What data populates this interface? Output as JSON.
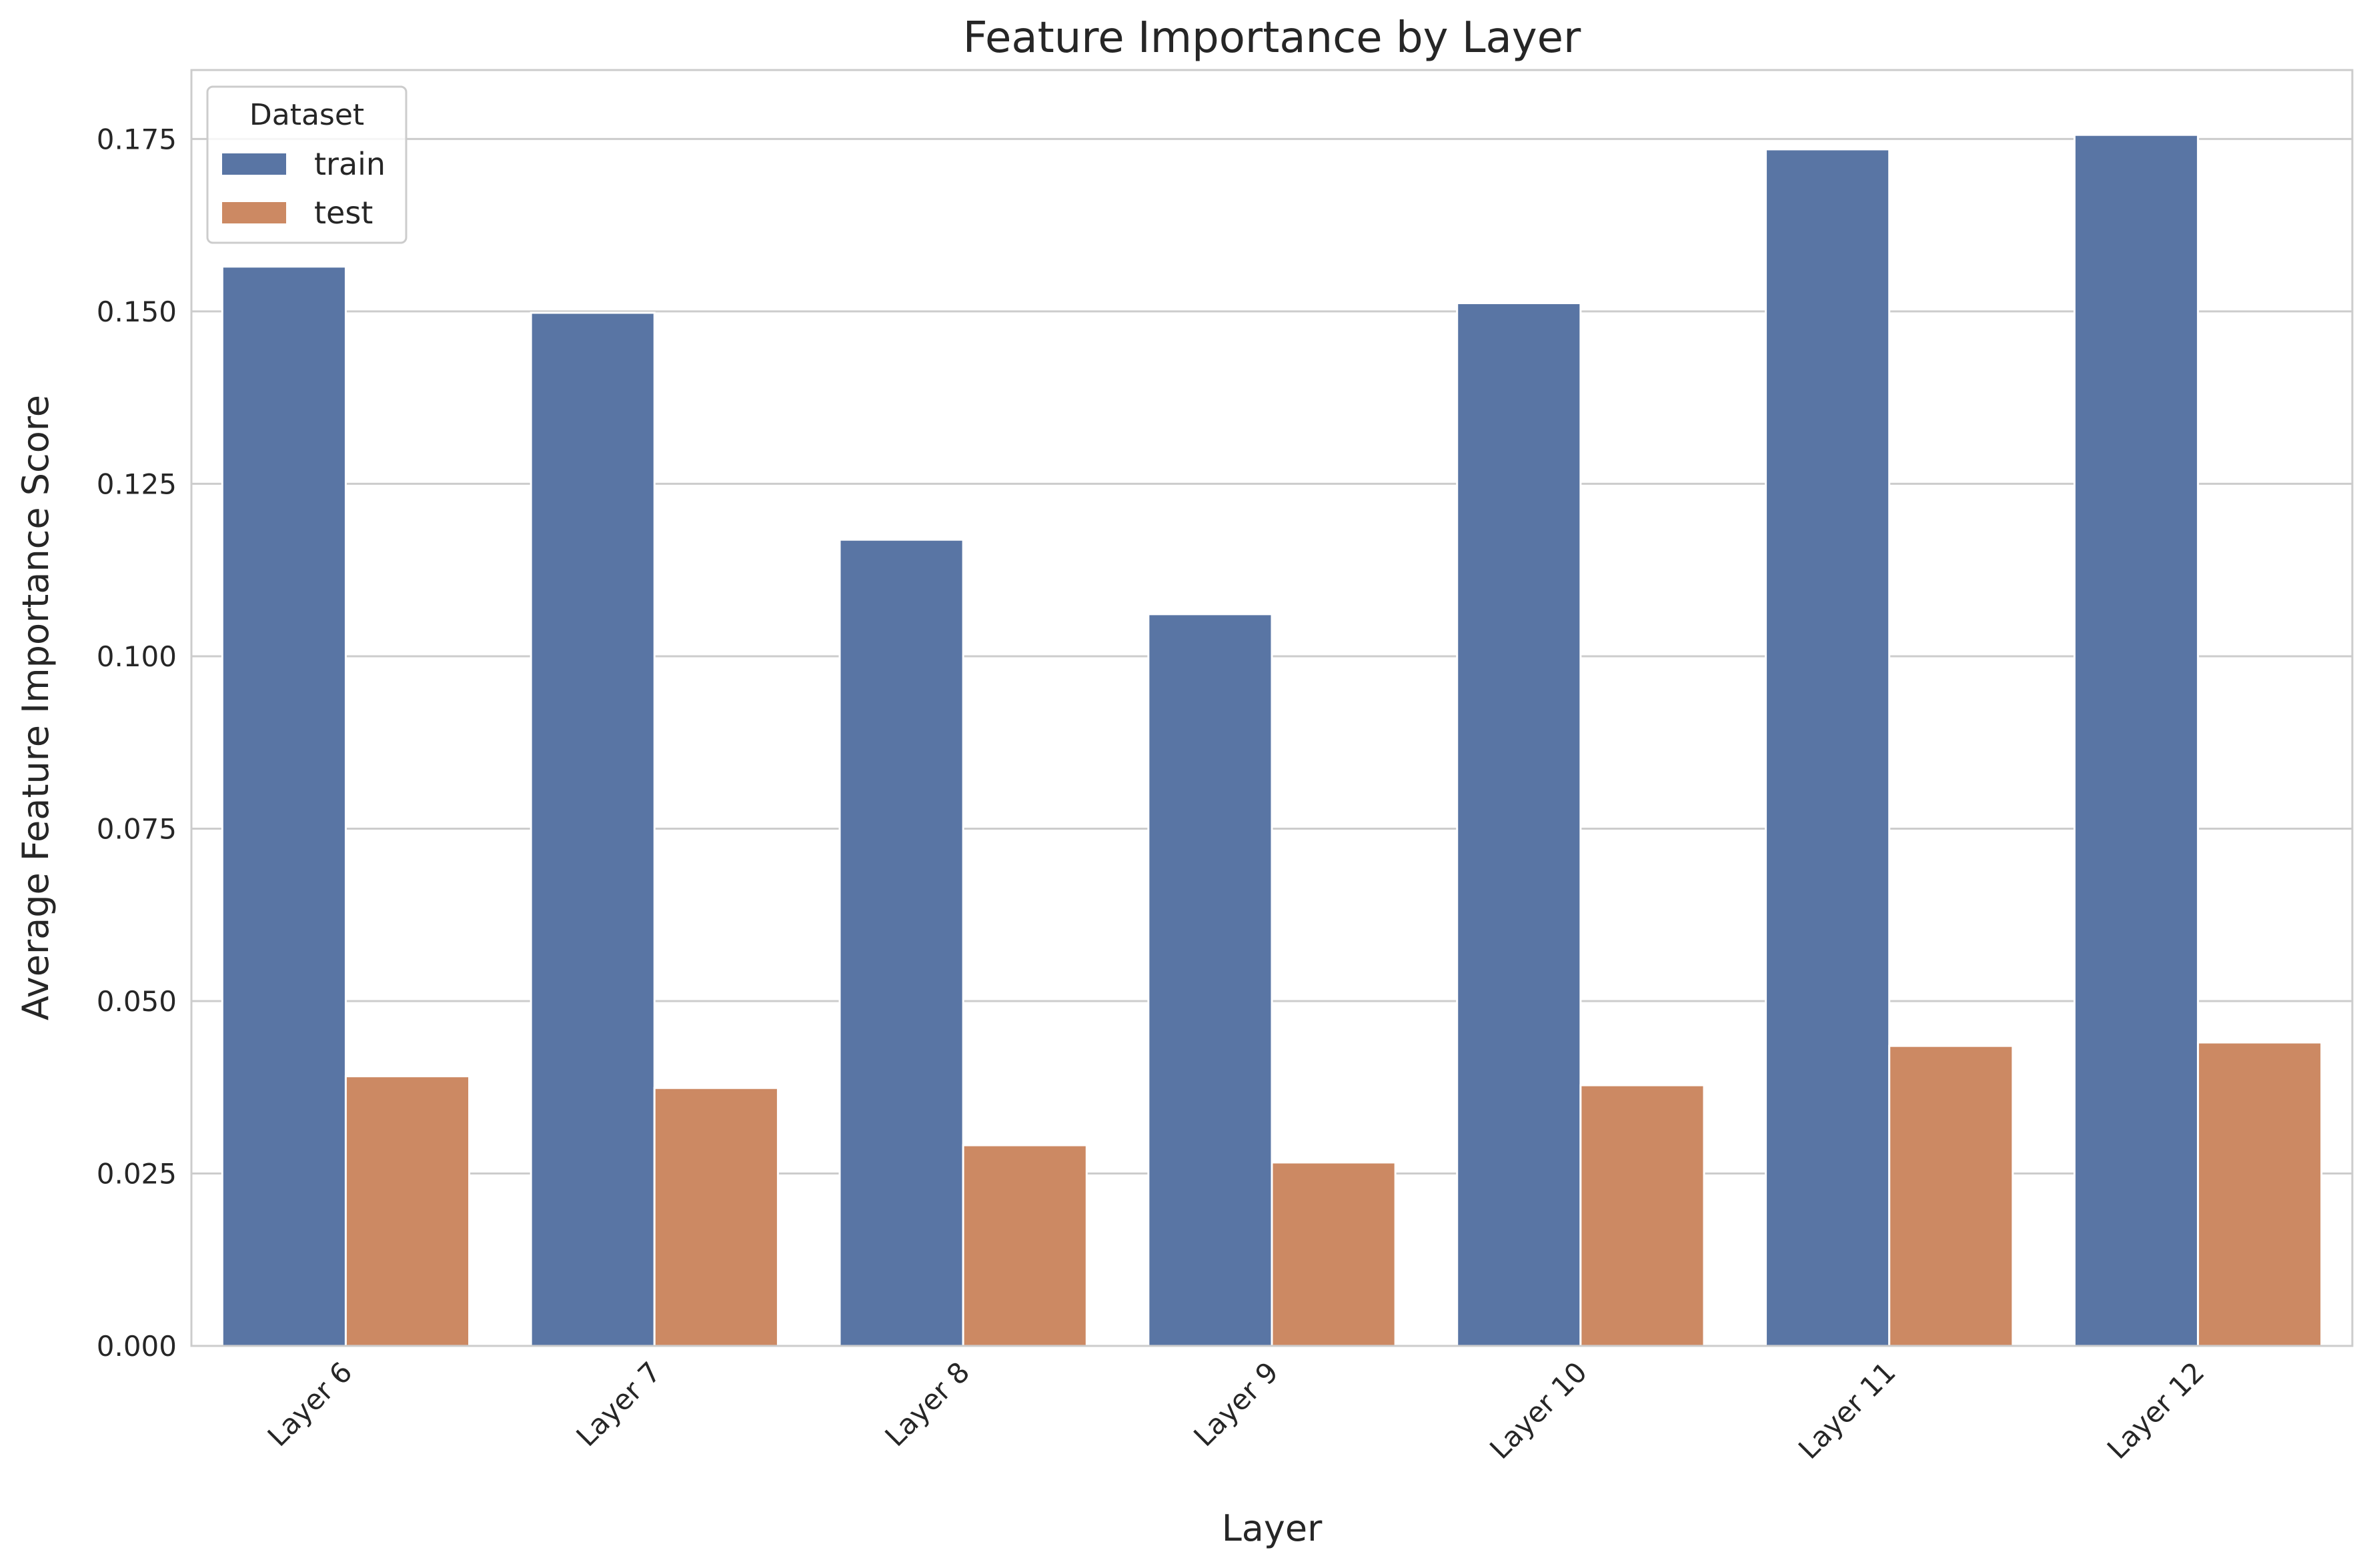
{
  "chart_data": {
    "type": "bar",
    "title": "Feature Importance by Layer",
    "xlabel": "Layer",
    "ylabel": "Average Feature Importance Score",
    "categories": [
      "Layer 6",
      "Layer 7",
      "Layer 8",
      "Layer 9",
      "Layer 10",
      "Layer 11",
      "Layer 12"
    ],
    "series": [
      {
        "name": "train",
        "color": "#5975a4",
        "values": [
          0.1565,
          0.1498,
          0.1169,
          0.1061,
          0.1512,
          0.1735,
          0.1756
        ]
      },
      {
        "name": "test",
        "color": "#cc8963",
        "values": [
          0.0391,
          0.0374,
          0.0291,
          0.0266,
          0.0378,
          0.0435,
          0.044
        ]
      }
    ],
    "ylim": [
      0,
      0.185
    ],
    "yticks": [
      "0.000",
      "0.025",
      "0.050",
      "0.075",
      "0.100",
      "0.125",
      "0.150",
      "0.175"
    ],
    "ytick_values": [
      0,
      0.025,
      0.05,
      0.075,
      0.1,
      0.125,
      0.15,
      0.175
    ],
    "legend": {
      "title": "Dataset",
      "placement": "top-left"
    },
    "grid": "horizontal"
  }
}
